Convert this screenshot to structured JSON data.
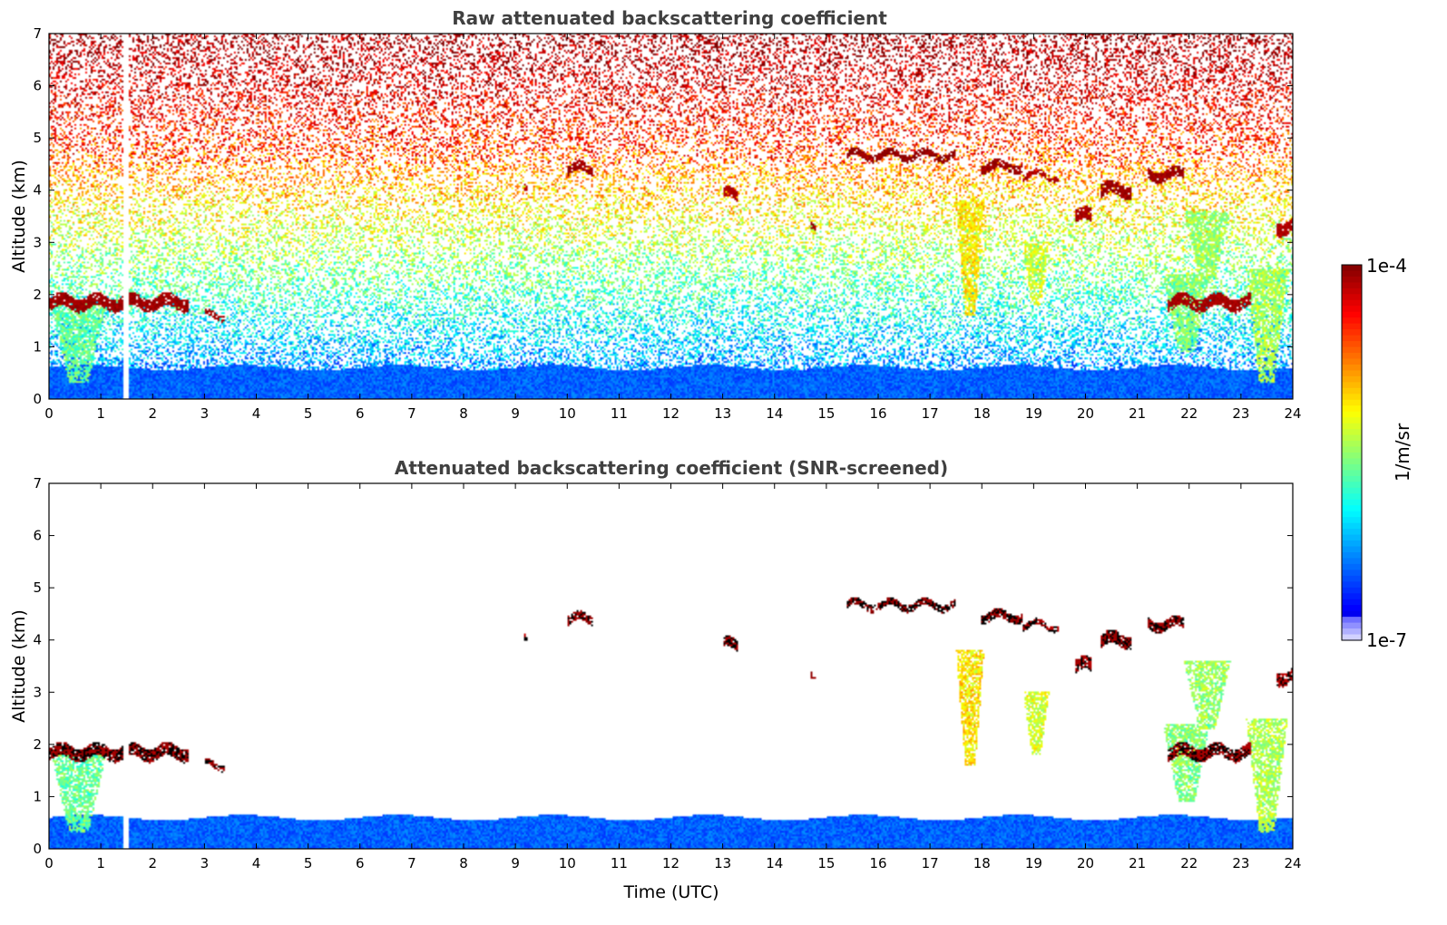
{
  "chart_data": [
    {
      "type": "heatmap",
      "title": "Raw attenuated backscattering coefficient",
      "xlabel": "",
      "ylabel": "Altitude (km)",
      "xlim": [
        0,
        24
      ],
      "ylim": [
        0,
        7
      ],
      "x_ticks": [
        "0",
        "1",
        "2",
        "3",
        "4",
        "5",
        "6",
        "7",
        "8",
        "9",
        "10",
        "11",
        "12",
        "13",
        "14",
        "15",
        "16",
        "17",
        "18",
        "19",
        "20",
        "21",
        "22",
        "23",
        "24"
      ],
      "y_ticks": [
        "0",
        "1",
        "2",
        "3",
        "4",
        "5",
        "6",
        "7"
      ],
      "screened": false,
      "data_gap_hours": [
        1.43,
        1.55
      ]
    },
    {
      "type": "heatmap",
      "title": "Attenuated backscattering coefficient (SNR-screened)",
      "xlabel": "Time (UTC)",
      "ylabel": "Altitude (km)",
      "xlim": [
        0,
        24
      ],
      "ylim": [
        0,
        7
      ],
      "x_ticks": [
        "0",
        "1",
        "2",
        "3",
        "4",
        "5",
        "6",
        "7",
        "8",
        "9",
        "10",
        "11",
        "12",
        "13",
        "14",
        "15",
        "16",
        "17",
        "18",
        "19",
        "20",
        "21",
        "22",
        "23",
        "24"
      ],
      "y_ticks": [
        "0",
        "1",
        "2",
        "3",
        "4",
        "5",
        "6",
        "7"
      ],
      "screened": true,
      "data_gap_hours": [
        1.43,
        1.55
      ]
    }
  ],
  "colorbar": {
    "label": "1/m/sr",
    "max_label": "1e-4",
    "min_label": "1e-7",
    "range": [
      1e-07,
      0.0001
    ],
    "scale": "log",
    "colormap": "jet"
  },
  "features": {
    "cloud_layers": [
      {
        "t0": 0.0,
        "t1": 2.7,
        "alt": 1.85,
        "thick": 0.25,
        "level": 0.97
      },
      {
        "t0": 3.0,
        "t1": 3.4,
        "alt": 1.6,
        "thick": 0.12,
        "level": 0.97
      },
      {
        "t0": 10.0,
        "t1": 10.5,
        "alt": 4.4,
        "thick": 0.18,
        "level": 0.97
      },
      {
        "t0": 13.0,
        "t1": 13.3,
        "alt": 3.9,
        "thick": 0.2,
        "level": 0.95
      },
      {
        "t0": 15.4,
        "t1": 17.5,
        "alt": 4.67,
        "thick": 0.14,
        "level": 0.98
      },
      {
        "t0": 18.0,
        "t1": 18.8,
        "alt": 4.45,
        "thick": 0.18,
        "level": 0.97
      },
      {
        "t0": 18.8,
        "t1": 19.5,
        "alt": 4.28,
        "thick": 0.12,
        "level": 0.95
      },
      {
        "t0": 19.8,
        "t1": 20.1,
        "alt": 3.5,
        "thick": 0.25,
        "level": 0.96
      },
      {
        "t0": 20.3,
        "t1": 20.9,
        "alt": 4.0,
        "thick": 0.25,
        "level": 0.97
      },
      {
        "t0": 21.2,
        "t1": 21.9,
        "alt": 4.3,
        "thick": 0.2,
        "level": 0.97
      },
      {
        "t0": 21.6,
        "t1": 23.2,
        "alt": 1.85,
        "thick": 0.25,
        "level": 0.96
      },
      {
        "t0": 23.7,
        "t1": 24.0,
        "alt": 3.3,
        "thick": 0.25,
        "level": 0.95
      },
      {
        "t0": 14.7,
        "t1": 14.8,
        "alt": 3.25,
        "thick": 0.12,
        "level": 0.97
      },
      {
        "t0": 9.15,
        "t1": 9.25,
        "alt": 4.08,
        "thick": 0.12,
        "level": 0.95
      }
    ],
    "plumes": [
      {
        "t0": 0.05,
        "t1": 1.1,
        "a0": 0.3,
        "a1": 1.8,
        "level": 0.55
      },
      {
        "t0": 17.5,
        "t1": 18.05,
        "a0": 1.6,
        "a1": 3.8,
        "level": 0.72
      },
      {
        "t0": 18.8,
        "t1": 19.3,
        "a0": 1.8,
        "a1": 3.0,
        "level": 0.66
      },
      {
        "t0": 21.5,
        "t1": 22.4,
        "a0": 0.9,
        "a1": 2.4,
        "level": 0.58
      },
      {
        "t0": 21.9,
        "t1": 22.8,
        "a0": 2.3,
        "a1": 3.6,
        "level": 0.6
      },
      {
        "t0": 23.1,
        "t1": 23.9,
        "a0": 0.3,
        "a1": 2.5,
        "level": 0.62
      }
    ],
    "boundary_layer_top_km": 0.6
  }
}
